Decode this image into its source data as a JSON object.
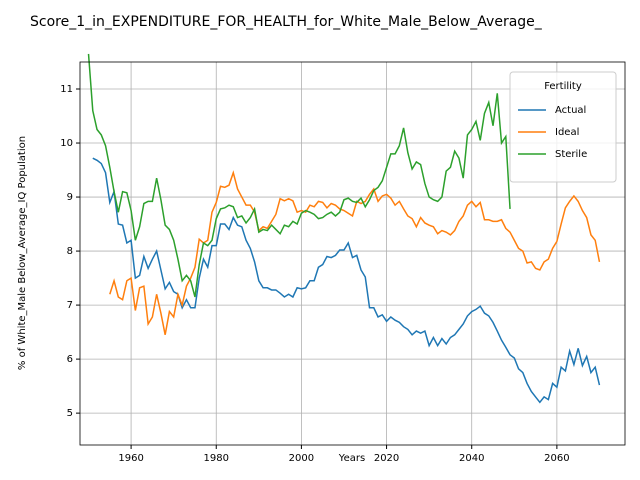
{
  "chart_data": {
    "type": "line",
    "title": "Score_1_in_EXPENDITURE_FOR_HEALTH_for_White_Male_Below_Average_",
    "xlabel": "Years",
    "ylabel": "% of White_Male Below_Average_IQ Population",
    "legend_title": "Fertility",
    "legend": "upper right",
    "grid": true,
    "xlim": [
      1948,
      2076
    ],
    "ylim": [
      4.41,
      11.5
    ],
    "xticks": [
      1960,
      1980,
      2000,
      2020,
      2040,
      2060
    ],
    "yticks": [
      5,
      6,
      7,
      8,
      9,
      10,
      11
    ],
    "x": [
      1950,
      1951,
      1952,
      1953,
      1954,
      1955,
      1956,
      1957,
      1958,
      1959,
      1960,
      1961,
      1962,
      1963,
      1964,
      1965,
      1966,
      1967,
      1968,
      1969,
      1970,
      1971,
      1972,
      1973,
      1974,
      1975,
      1976,
      1977,
      1978,
      1979,
      1980,
      1981,
      1982,
      1983,
      1984,
      1985,
      1986,
      1987,
      1988,
      1989,
      1990,
      1991,
      1992,
      1993,
      1994,
      1995,
      1996,
      1997,
      1998,
      1999,
      2000,
      2001,
      2002,
      2003,
      2004,
      2005,
      2006,
      2007,
      2008,
      2009,
      2010,
      2011,
      2012,
      2013,
      2014,
      2015,
      2016,
      2017,
      2018,
      2019,
      2020,
      2021,
      2022,
      2023,
      2024,
      2025,
      2026,
      2027,
      2028,
      2029,
      2030,
      2031,
      2032,
      2033,
      2034,
      2035,
      2036,
      2037,
      2038,
      2039,
      2040,
      2041,
      2042,
      2043,
      2044,
      2045,
      2046,
      2047,
      2048,
      2049,
      2050,
      2051,
      2052,
      2053,
      2054,
      2055,
      2056,
      2057,
      2058,
      2059,
      2060,
      2061,
      2062,
      2063,
      2064,
      2065,
      2066,
      2067,
      2068,
      2069,
      2070
    ],
    "series": [
      {
        "name": "Actual",
        "color": "#1f77b4",
        "values": [
          null,
          9.72,
          9.68,
          9.62,
          9.45,
          8.9,
          9.1,
          8.5,
          8.48,
          8.15,
          8.2,
          7.5,
          7.55,
          7.9,
          7.68,
          7.85,
          8.0,
          7.65,
          7.3,
          7.42,
          7.25,
          7.2,
          6.95,
          7.1,
          6.95,
          6.95,
          7.5,
          7.85,
          7.7,
          8.1,
          8.1,
          8.5,
          8.5,
          8.4,
          8.62,
          8.48,
          8.45,
          8.2,
          8.05,
          7.8,
          7.45,
          7.32,
          7.32,
          7.28,
          7.28,
          7.22,
          7.15,
          7.2,
          7.15,
          7.32,
          7.3,
          7.32,
          7.45,
          7.45,
          7.7,
          7.75,
          7.9,
          7.88,
          7.92,
          8.02,
          8.02,
          8.15,
          7.88,
          7.92,
          7.65,
          7.52,
          6.95,
          6.95,
          6.78,
          6.82,
          6.7,
          6.78,
          6.72,
          6.68,
          6.6,
          6.55,
          6.45,
          6.52,
          6.48,
          6.52,
          6.25,
          6.4,
          6.25,
          6.38,
          6.28,
          6.4,
          6.45,
          6.55,
          6.65,
          6.8,
          6.88,
          6.92,
          6.98,
          6.85,
          6.8,
          6.68,
          6.52,
          6.35,
          6.22,
          6.08,
          6.02,
          5.82,
          5.75,
          5.55,
          5.4,
          5.3,
          5.2,
          5.3,
          5.25,
          5.55,
          5.48,
          5.85,
          5.78,
          6.15,
          5.9,
          6.2,
          5.88,
          6.05,
          5.75,
          5.85,
          5.52
        ]
      },
      {
        "name": "Ideal",
        "color": "#ff7f0e",
        "values": [
          null,
          null,
          null,
          null,
          null,
          7.2,
          7.45,
          7.15,
          7.1,
          7.45,
          7.5,
          6.9,
          7.32,
          7.35,
          6.65,
          6.78,
          7.2,
          6.85,
          6.45,
          6.88,
          6.78,
          7.2,
          7.0,
          7.35,
          7.5,
          7.7,
          8.22,
          8.15,
          8.2,
          8.72,
          8.9,
          9.2,
          9.18,
          9.22,
          9.45,
          9.15,
          9.0,
          8.85,
          8.85,
          8.72,
          8.38,
          8.45,
          8.42,
          8.55,
          8.68,
          8.97,
          8.93,
          8.97,
          8.93,
          8.72,
          8.75,
          8.72,
          8.85,
          8.82,
          8.92,
          8.9,
          8.8,
          8.88,
          8.85,
          8.78,
          8.75,
          8.7,
          8.65,
          8.92,
          8.88,
          8.92,
          9.05,
          9.15,
          8.92,
          9.02,
          9.05,
          8.98,
          8.85,
          8.92,
          8.78,
          8.65,
          8.6,
          8.45,
          8.62,
          8.52,
          8.48,
          8.45,
          8.32,
          8.38,
          8.35,
          8.3,
          8.38,
          8.55,
          8.65,
          8.85,
          8.92,
          8.82,
          8.9,
          8.58,
          8.58,
          8.55,
          8.55,
          8.58,
          8.42,
          8.35,
          8.2,
          8.05,
          8.0,
          7.78,
          7.8,
          7.68,
          7.65,
          7.8,
          7.85,
          8.05,
          8.18,
          8.5,
          8.8,
          8.92,
          9.02,
          8.92,
          8.75,
          8.62,
          8.3,
          8.2,
          7.8
        ]
      },
      {
        "name": "Sterile",
        "color": "#2ca02c",
        "values": [
          11.65,
          10.6,
          10.25,
          10.15,
          9.95,
          9.55,
          9.1,
          8.72,
          9.1,
          9.08,
          8.75,
          8.2,
          8.45,
          8.88,
          8.92,
          8.92,
          9.35,
          8.95,
          8.48,
          8.4,
          8.2,
          7.85,
          7.45,
          7.55,
          7.45,
          7.15,
          7.75,
          8.15,
          8.1,
          8.2,
          8.6,
          8.78,
          8.8,
          8.85,
          8.82,
          8.62,
          8.65,
          8.52,
          8.62,
          8.78,
          8.35,
          8.4,
          8.38,
          8.48,
          8.4,
          8.32,
          8.48,
          8.45,
          8.55,
          8.5,
          8.7,
          8.75,
          8.72,
          8.68,
          8.6,
          8.62,
          8.68,
          8.72,
          8.65,
          8.72,
          8.95,
          8.98,
          8.92,
          8.9,
          8.98,
          8.82,
          8.95,
          9.12,
          9.18,
          9.3,
          9.55,
          9.8,
          9.8,
          9.95,
          10.28,
          9.82,
          9.52,
          9.65,
          9.6,
          9.25,
          9.0,
          8.95,
          8.92,
          9.0,
          9.48,
          9.55,
          9.85,
          9.72,
          9.35,
          10.15,
          10.25,
          10.4,
          10.05,
          10.55,
          10.75,
          10.32,
          10.92,
          10.0,
          10.12,
          8.78,
          null,
          null,
          null,
          null,
          null,
          null,
          null,
          null,
          null,
          null,
          null,
          null,
          null,
          null,
          null,
          null,
          null,
          null,
          null,
          null,
          null
        ]
      }
    ]
  }
}
